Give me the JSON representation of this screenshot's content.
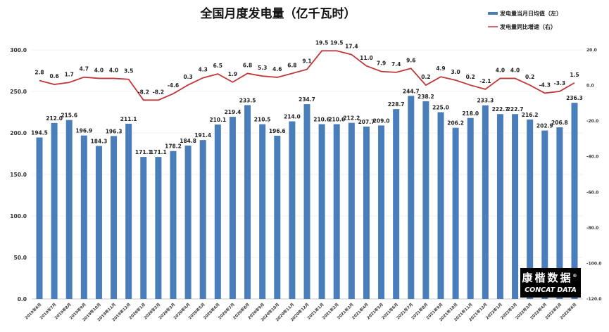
{
  "chart_data": {
    "type": "bar+line",
    "title": "全国月度发电量（亿千瓦时）",
    "categories": [
      "2019年6月",
      "2019年7月",
      "2019年8月",
      "2019年9月",
      "2019年10月",
      "2019年11月",
      "2019年12月",
      "2020年1月",
      "2020年2月",
      "2020年3月",
      "2020年4月",
      "2020年5月",
      "2020年6月",
      "2020年7月",
      "2020年8月",
      "2020年9月",
      "2020年10月",
      "2020年11月",
      "2020年12月",
      "2021年1月",
      "2021年2月",
      "2021年3月",
      "2021年4月",
      "2021年5月",
      "2021年6月",
      "2021年7月",
      "2021年8月",
      "2021年9月",
      "2021年10月",
      "2021年11月",
      "2021年12月",
      "2022年1月",
      "2022年2月",
      "2022年3月",
      "2022年4月",
      "2022年5月",
      "2022年6月"
    ],
    "series": [
      {
        "name": "发电量当月日均值（左）",
        "type": "bar",
        "axis": "left",
        "color": "#4a7ebb",
        "values": [
          194.5,
          212.0,
          215.6,
          196.9,
          184.3,
          196.3,
          211.1,
          171.1,
          171.1,
          178.2,
          184.8,
          191.4,
          210.1,
          219.4,
          233.5,
          210.5,
          196.6,
          214.0,
          234.7,
          210.6,
          210.6,
          212.2,
          207.7,
          209.0,
          228.7,
          244.7,
          238.2,
          225.0,
          206.2,
          218.0,
          233.3,
          222.7,
          222.7,
          216.2,
          202.9,
          206.8,
          236.3
        ]
      },
      {
        "name": "发电量同比增速（右）",
        "type": "line",
        "axis": "right",
        "color": "#c0383a",
        "values": [
          2.8,
          0.6,
          1.7,
          4.7,
          4.0,
          4.0,
          3.5,
          -8.2,
          -8.2,
          -4.6,
          0.3,
          4.3,
          6.5,
          1.9,
          6.8,
          5.3,
          4.6,
          6.8,
          9.1,
          19.5,
          19.5,
          17.4,
          11.0,
          7.9,
          7.4,
          9.6,
          0.2,
          4.9,
          3.0,
          0.2,
          -2.1,
          4.0,
          4.0,
          0.2,
          -4.3,
          -3.3,
          1.5
        ]
      }
    ],
    "left_axis": {
      "ylim": [
        0,
        300
      ],
      "ticks": [
        "0.0",
        "50.0",
        "100.0",
        "150.0",
        "200.0",
        "250.0",
        "300.0"
      ]
    },
    "right_axis": {
      "ylim": [
        -120,
        20
      ],
      "ticks": [
        "-120.0",
        "-100.0",
        "-80.0",
        "-60.0",
        "-40.0",
        "-20.0",
        "0.0",
        "20.0"
      ]
    },
    "legend": "top-right"
  },
  "logo": {
    "cn": "康楷数据",
    "en": "CONCAT DATA",
    "mark": "®"
  }
}
